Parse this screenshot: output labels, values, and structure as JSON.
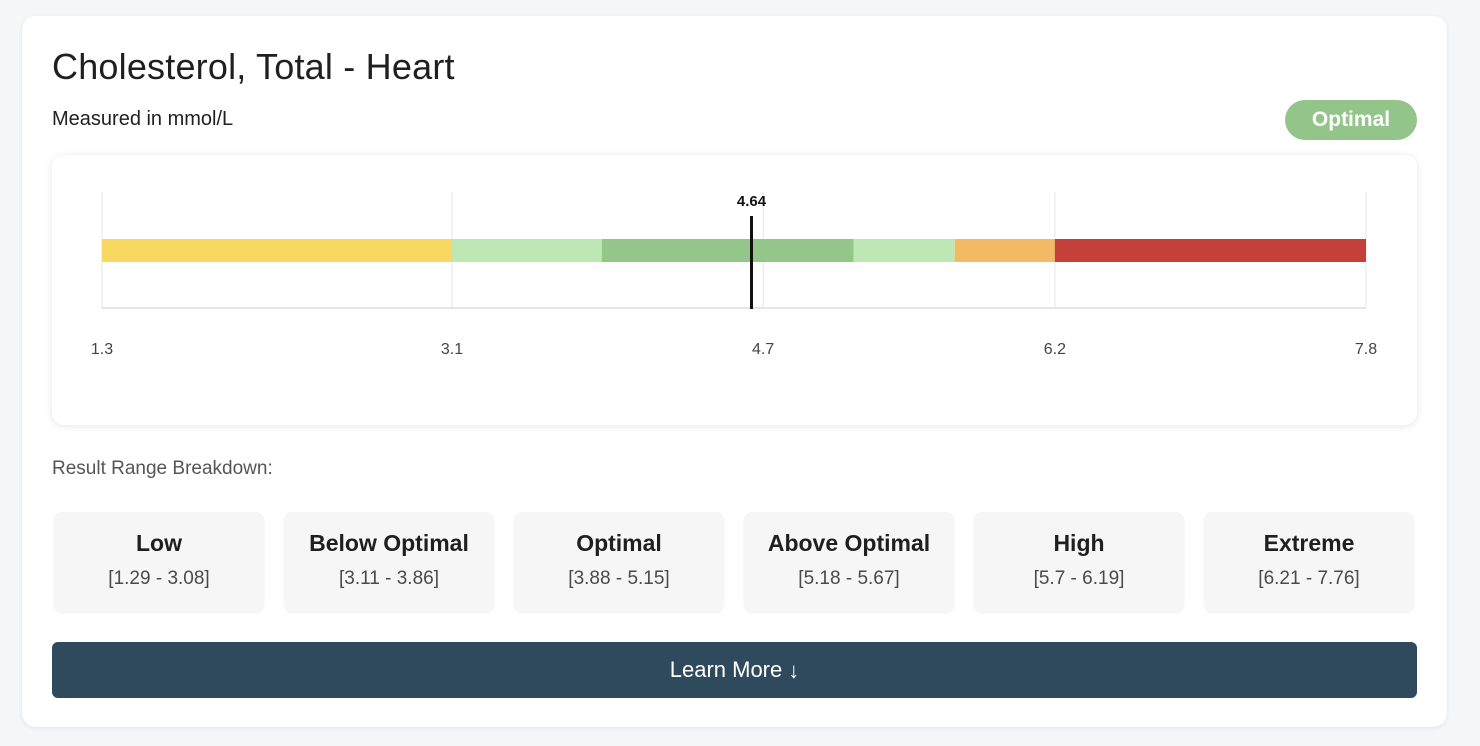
{
  "header": {
    "title": "Cholesterol, Total - Heart",
    "unit_text": "Measured in mmol/L",
    "status_badge": "Optimal"
  },
  "colors": {
    "badge": "#93c58b",
    "button": "#2f4a5c",
    "marker": "#111111",
    "axis": "#dddddd"
  },
  "chart_data": {
    "type": "range-bar",
    "xlim": [
      1.3,
      7.8
    ],
    "ticks": [
      {
        "value": 1.3,
        "label": "1.3"
      },
      {
        "value": 3.1,
        "label": "3.1"
      },
      {
        "value": 4.7,
        "label": "4.7"
      },
      {
        "value": 6.2,
        "label": "6.2"
      },
      {
        "value": 7.8,
        "label": "7.8"
      }
    ],
    "segments": [
      {
        "name": "Low",
        "start": 1.3,
        "end": 3.1,
        "color": "#f8d860"
      },
      {
        "name": "Below Optimal",
        "start": 3.1,
        "end": 3.87,
        "color": "#bde7b5"
      },
      {
        "name": "Optimal",
        "start": 3.87,
        "end": 5.165,
        "color": "#94c68b"
      },
      {
        "name": "Above Optimal",
        "start": 5.165,
        "end": 5.685,
        "color": "#bde7b5"
      },
      {
        "name": "High",
        "start": 5.685,
        "end": 6.2,
        "color": "#f4b964"
      },
      {
        "name": "Extreme",
        "start": 6.2,
        "end": 7.8,
        "color": "#c5403a"
      }
    ],
    "marker": {
      "value": 4.64,
      "label": "4.64"
    }
  },
  "breakdown": {
    "label": "Result Range Breakdown:",
    "ranges": [
      {
        "name": "Low",
        "span": "[1.29 - 3.08]"
      },
      {
        "name": "Below Optimal",
        "span": "[3.11 - 3.86]"
      },
      {
        "name": "Optimal",
        "span": "[3.88 - 5.15]"
      },
      {
        "name": "Above Optimal",
        "span": "[5.18 - 5.67]"
      },
      {
        "name": "High",
        "span": "[5.7 - 6.19]"
      },
      {
        "name": "Extreme",
        "span": "[6.21 - 7.76]"
      }
    ]
  },
  "actions": {
    "learn_more_label": "Learn More",
    "learn_more_icon": "arrow-down-icon"
  }
}
